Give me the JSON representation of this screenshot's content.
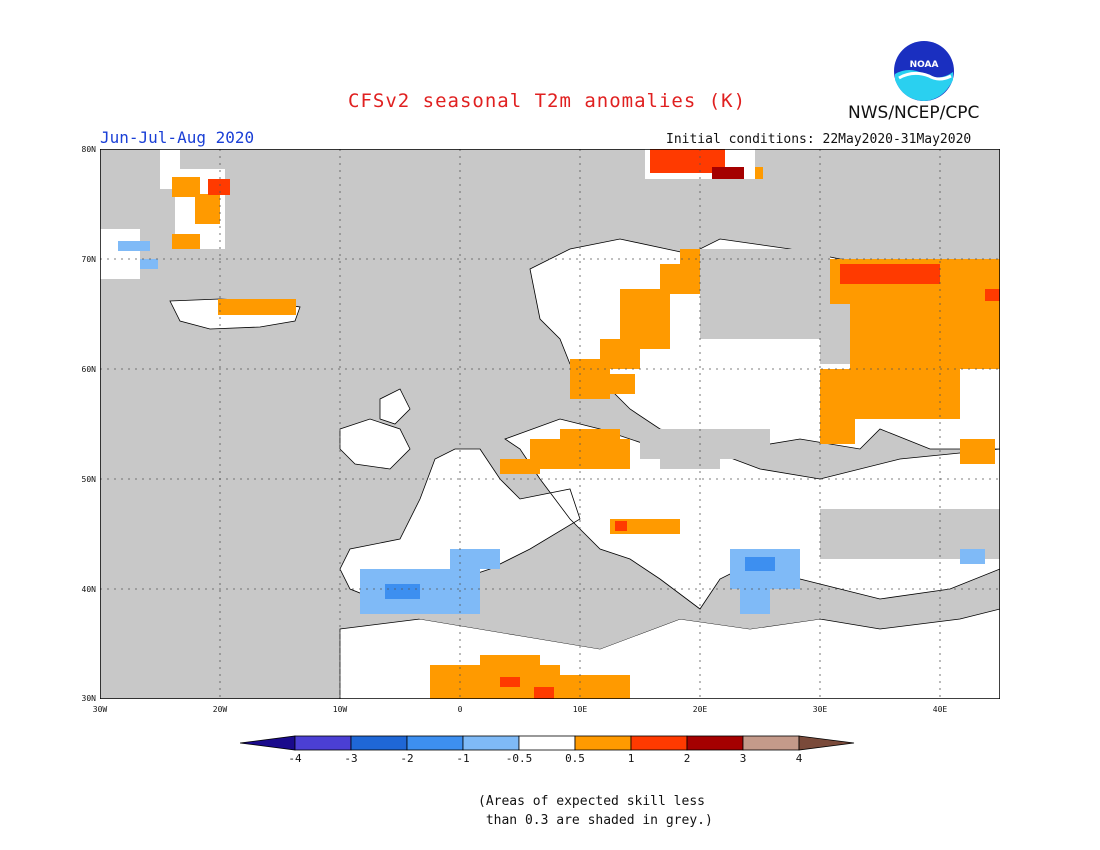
{
  "header": {
    "title": "CFSv2 seasonal T2m anomalies (K)",
    "period": "Jun-Jul-Aug 2020",
    "initial_conditions": "Initial conditions: 22May2020-31May2020",
    "agency": "NWS/NCEP/CPC",
    "logo_text": "NOAA"
  },
  "map": {
    "region": "Europe",
    "lon_range": [
      -30,
      45
    ],
    "lat_range": [
      30,
      80
    ],
    "lat_labels": [
      "80N",
      "70N",
      "60N",
      "50N",
      "40N",
      "30N"
    ],
    "lon_labels": [
      "30W",
      "20W",
      "10W",
      "0",
      "10E",
      "20E",
      "30E",
      "40E"
    ],
    "grid": "dotted",
    "ocean_color": "#c8c8c8",
    "land_color": "#ffffff",
    "anomaly_regions": [
      {
        "area": "Svalbard",
        "class": "1 to 3"
      },
      {
        "area": "Greenland east coast",
        "class": "0.5 to 2"
      },
      {
        "area": "Iceland",
        "class": "0.5 to 1"
      },
      {
        "area": "Norway / northern Scandinavia",
        "class": "0.5 to 1"
      },
      {
        "area": "Kola Peninsula",
        "class": "1 to 2"
      },
      {
        "area": "Western Russia",
        "class": "0.5 to 1"
      },
      {
        "area": "Northern Germany / Poland",
        "class": "0.5 to 1"
      },
      {
        "area": "North Africa (Algeria / Tunisia / Libya)",
        "class": "0.5 to 2"
      },
      {
        "area": "Iberian Peninsula",
        "class": "-1 to -0.5"
      },
      {
        "area": "Balkans / Aegean",
        "class": "-1 to -0.5"
      }
    ]
  },
  "colorbar": {
    "labels": [
      "-4",
      "-3",
      "-2",
      "-1",
      "-0.5",
      "0.5",
      "1",
      "2",
      "3",
      "4"
    ],
    "colors": [
      "#1a0a8c",
      "#4b3fd4",
      "#1f67d6",
      "#3d8ff0",
      "#7fbaf7",
      "#ffffff",
      "#ff9a00",
      "#ff3a00",
      "#a50000",
      "#c49a8a",
      "#7a4a3a"
    ]
  },
  "note": "(Areas of expected skill less\n than 0.3 are shaded in grey.)"
}
